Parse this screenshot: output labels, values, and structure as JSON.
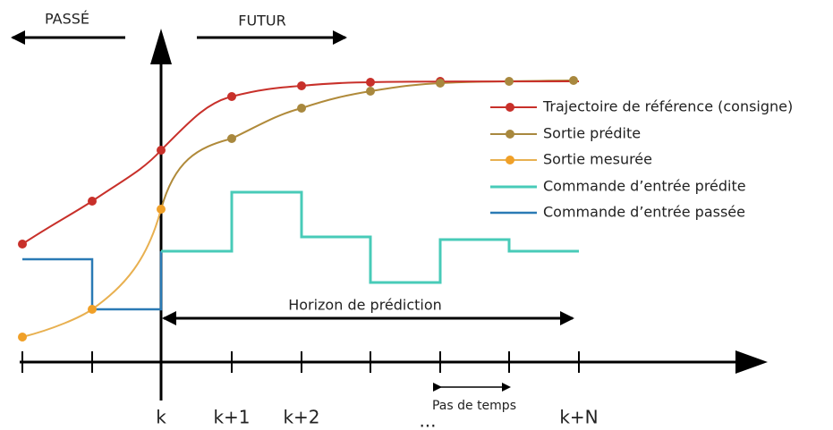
{
  "header": {
    "past": "PASSÉ",
    "future": "FUTUR"
  },
  "axis": {
    "ticks": [
      "k",
      "k+1",
      "k+2",
      "...",
      "k+N"
    ]
  },
  "horizon": "Horizon de prédiction",
  "step": "Pas de temps",
  "legend": [
    "Trajectoire de référence (consigne)",
    "Sortie prédite",
    "Sortie mesurée",
    "Commande d’entrée prédite",
    "Commande d’entrée passée"
  ]
}
